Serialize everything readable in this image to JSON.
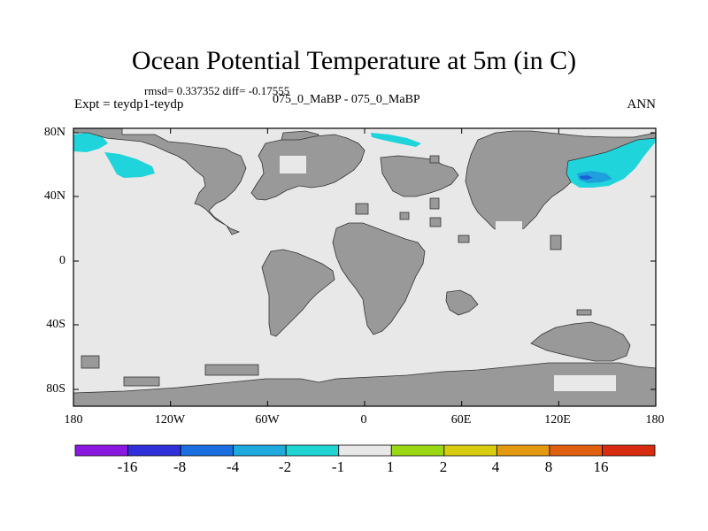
{
  "title": "Ocean Potential Temperature at 5m (in C)",
  "stats": "rmsd= 0.337352 diff= -0.17555",
  "expt": "Expt = teydp1-teydp",
  "case": "075_0_MaBP - 075_0_MaBP",
  "season": "ANN",
  "y_ticks": [
    "80N",
    "40N",
    "0",
    "40S",
    "80S"
  ],
  "x_ticks": [
    "180",
    "120W",
    "60W",
    "0",
    "60E",
    "120E",
    "180"
  ],
  "colors": {
    "ocean_zero": "#e8e8e8",
    "land": "#999999",
    "cool_anomaly": "#20d4dc",
    "cold_anomaly": "#1ea0dc",
    "deep_cold_anomaly": "#1a60d8"
  },
  "colorbar": {
    "colors": [
      "#8a18e0",
      "#3030d8",
      "#1a6ee0",
      "#1eaadc",
      "#20d4d4",
      "#e8e8e8",
      "#9ad814",
      "#d8cc10",
      "#e49a10",
      "#e06010",
      "#d82c10"
    ],
    "labels": [
      "-16",
      "-8",
      "-4",
      "-2",
      "-1",
      "1",
      "2",
      "4",
      "8",
      "16"
    ]
  }
}
